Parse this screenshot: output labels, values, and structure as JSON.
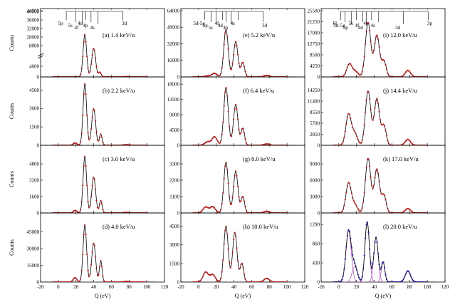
{
  "figure": {
    "xlabel": "Q (eV)",
    "ylabel": "Counts"
  },
  "chart_data": [
    {
      "id": "a",
      "type": "line",
      "label": "(a) 1.4 keV/u",
      "xlim": [
        -20,
        120
      ],
      "ylim": [
        0,
        44000
      ],
      "yticks": [
        "0",
        "4000",
        "8000",
        "28000",
        "32000",
        "36000",
        "40000",
        "44000"
      ],
      "ybreak": true,
      "xlabel": "",
      "ylabel": "Counts",
      "level_markers": [
        {
          "name": "5p",
          "q": 9
        },
        {
          "name": "5s",
          "q": 20
        },
        {
          "name": "4f",
          "q": 27
        },
        {
          "name": "4d",
          "q": 31
        },
        {
          "name": "4p",
          "q": 37
        },
        {
          "name": "4s",
          "q": 45
        },
        {
          "name": "3d",
          "q": 73
        }
      ],
      "series": [
        {
          "peaks": [
            [
              19,
              2,
              5
            ],
            [
              30,
              2,
              28000
            ],
            [
              40,
              2.2,
              19000
            ],
            [
              47,
              1.5,
              3000
            ],
            [
              77,
              3,
              200
            ]
          ]
        }
      ]
    },
    {
      "id": "e",
      "type": "line",
      "label": "(e) 5.2 keV/u",
      "xlim": [
        -20,
        120
      ],
      "ylim": [
        0,
        64000
      ],
      "yticks": [
        "0",
        "16000",
        "32000",
        "48000",
        "64000"
      ],
      "xlabel": "",
      "ylabel": "",
      "level_markers": [
        {
          "name": "5d-5g",
          "q": 7
        },
        {
          "name": "5p",
          "q": 14
        },
        {
          "name": "5s",
          "q": 20
        },
        {
          "name": "4f",
          "q": 27
        },
        {
          "name": "4d",
          "q": 31
        },
        {
          "name": "4p",
          "q": 37
        },
        {
          "name": "4s",
          "q": 45
        },
        {
          "name": "3d",
          "q": 73
        }
      ],
      "series": [
        {
          "peaks": [
            [
              10,
              3,
              1000
            ],
            [
              18,
              3,
              3500
            ],
            [
              31,
              2.5,
              46000
            ],
            [
              42,
              2.5,
              34000
            ],
            [
              50,
              2,
              14000
            ],
            [
              77,
              3,
              1500
            ]
          ]
        }
      ]
    },
    {
      "id": "i",
      "type": "line",
      "label": "(i) 12.0 keV/u",
      "xlim": [
        -20,
        120
      ],
      "ylim": [
        0,
        25500
      ],
      "yticks": [
        "0",
        "4250",
        "8500",
        "12750",
        "17000",
        "21250",
        "25500"
      ],
      "xlabel": "",
      "ylabel": "",
      "level_markers": [
        {
          "name": "6l",
          "q": 2
        },
        {
          "name": "5d-5g",
          "q": 7
        },
        {
          "name": "5p",
          "q": 14
        },
        {
          "name": "5s",
          "q": 20
        },
        {
          "name": "4f",
          "q": 27
        },
        {
          "name": "4d",
          "q": 31
        },
        {
          "name": "4p",
          "q": 37
        },
        {
          "name": "4s",
          "q": 45
        },
        {
          "name": "3d",
          "q": 73
        },
        {
          "name": "3p",
          "q": 101
        }
      ],
      "series": [
        {
          "peaks": [
            [
              12,
              3,
              5000
            ],
            [
              19,
              3,
              2000
            ],
            [
              33,
              3,
              21000
            ],
            [
              43,
              3,
              16000
            ],
            [
              51,
              2.5,
              6000
            ],
            [
              78,
              3,
              2500
            ]
          ]
        }
      ]
    },
    {
      "id": "b",
      "type": "line",
      "label": "(b) 2.2 keV/u",
      "xlim": [
        -20,
        120
      ],
      "ylim": [
        0,
        5400
      ],
      "yticks": [
        "0",
        "1500",
        "3000",
        "4500"
      ],
      "xlabel": "",
      "ylabel": "Counts",
      "series": [
        {
          "peaks": [
            [
              19,
              2,
              200
            ],
            [
              30,
              2,
              5000
            ],
            [
              40,
              2.2,
              3000
            ],
            [
              48,
              1.5,
              900
            ],
            [
              77,
              3,
              50
            ]
          ]
        }
      ]
    },
    {
      "id": "f",
      "type": "line",
      "label": "(f) 6.4 keV/u",
      "xlim": [
        -20,
        120
      ],
      "ylim": [
        0,
        19500
      ],
      "yticks": [
        "0",
        "4500",
        "9000",
        "13500",
        "18000"
      ],
      "xlabel": "",
      "ylabel": "",
      "series": [
        {
          "peaks": [
            [
              10,
              3,
              1000
            ],
            [
              18,
              3,
              2500
            ],
            [
              31,
              2.5,
              17000
            ],
            [
              42,
              2.5,
              12000
            ],
            [
              50,
              2,
              5000
            ],
            [
              77,
              3,
              400
            ]
          ]
        }
      ]
    },
    {
      "id": "j",
      "type": "line",
      "label": "(j) 14.4 keV/u",
      "xlim": [
        -20,
        120
      ],
      "ylim": [
        0,
        17100
      ],
      "yticks": [
        "0",
        "2850",
        "5700",
        "8550",
        "11400",
        "14250"
      ],
      "xlabel": "",
      "ylabel": "",
      "series": [
        {
          "peaks": [
            [
              11,
              3,
              8000
            ],
            [
              18,
              3,
              3000
            ],
            [
              33,
              3,
              14000
            ],
            [
              43,
              3,
              12000
            ],
            [
              51,
              2.5,
              5000
            ],
            [
              78,
              3,
              1500
            ]
          ]
        }
      ]
    },
    {
      "id": "c",
      "type": "line",
      "label": "(c) 3.0 keV/u",
      "xlim": [
        -20,
        120
      ],
      "ylim": [
        0,
        6400
      ],
      "yticks": [
        "0",
        "1600",
        "3200",
        "4800"
      ],
      "xlabel": "",
      "ylabel": "Counts",
      "series": [
        {
          "peaks": [
            [
              19,
              2,
              250
            ],
            [
              30,
              2,
              5500
            ],
            [
              40,
              2.2,
              3500
            ],
            [
              48,
              1.5,
              1200
            ],
            [
              77,
              3,
              60
            ]
          ]
        }
      ]
    },
    {
      "id": "g",
      "type": "line",
      "label": "(g) 8.0 keV/u",
      "xlim": [
        -20,
        120
      ],
      "ylim": [
        0,
        4400
      ],
      "yticks": [
        "0",
        "1100",
        "2200",
        "3300"
      ],
      "xlabel": "",
      "ylabel": "",
      "series": [
        {
          "peaks": [
            [
              8,
              3,
              400
            ],
            [
              16,
              3,
              420
            ],
            [
              31,
              2.5,
              3400
            ],
            [
              42,
              2.5,
              2800
            ],
            [
              50,
              2,
              1100
            ],
            [
              77,
              3,
              120
            ]
          ]
        }
      ]
    },
    {
      "id": "k",
      "type": "line",
      "label": "(k) 17.0 keV/u",
      "xlim": [
        -20,
        120
      ],
      "ylim": [
        0,
        12000
      ],
      "yticks": [
        "0",
        "3000",
        "6000",
        "9000"
      ],
      "xlabel": "",
      "ylabel": "",
      "series": [
        {
          "peaks": [
            [
              11,
              3,
              5500
            ],
            [
              18,
              3,
              1500
            ],
            [
              33,
              3,
              10000
            ],
            [
              43,
              3,
              8000
            ],
            [
              51,
              2.5,
              3200
            ],
            [
              78,
              3,
              800
            ]
          ]
        }
      ]
    },
    {
      "id": "d",
      "type": "line",
      "label": "(d) 4.0 keV/u",
      "xlim": [
        -20,
        120
      ],
      "ylim": [
        0,
        60000
      ],
      "yticks": [
        "0",
        "15000",
        "30000",
        "45000"
      ],
      "xlabel": "Q (eV)",
      "ylabel": "Counts",
      "show_xticks": true,
      "series": [
        {
          "peaks": [
            [
              19,
              2,
              4000
            ],
            [
              30,
              2,
              51000
            ],
            [
              40,
              2.2,
              35000
            ],
            [
              48,
              1.5,
              19000
            ],
            [
              77,
              3,
              600
            ]
          ]
        }
      ]
    },
    {
      "id": "h",
      "type": "line",
      "label": "(h) 10.0 keV/u",
      "xlim": [
        -20,
        120
      ],
      "ylim": [
        0,
        5400
      ],
      "yticks": [
        "0",
        "1500",
        "3000",
        "4500"
      ],
      "xlabel": "Q (eV)",
      "ylabel": "",
      "show_xticks": true,
      "series": [
        {
          "peaks": [
            [
              8,
              3,
              800
            ],
            [
              16,
              3,
              600
            ],
            [
              31,
              2.5,
              4500
            ],
            [
              41,
              2.5,
              4000
            ],
            [
              49,
              2,
              1500
            ],
            [
              77,
              3,
              300
            ]
          ]
        }
      ]
    },
    {
      "id": "l",
      "type": "line",
      "label": "(l) 20.0 keV/u",
      "xlim": [
        -20,
        120
      ],
      "ylim": [
        0,
        1500
      ],
      "yticks": [
        "0",
        "430",
        "860",
        "1290"
      ],
      "xlabel": "Q (eV)",
      "ylabel": "",
      "show_xticks": true,
      "fit_components": true,
      "series": [
        {
          "peaks": [
            [
              11,
              3,
              1150
            ],
            [
              18,
              3,
              350
            ],
            [
              32,
              2.5,
              1350
            ],
            [
              42,
              2.5,
              1000
            ],
            [
              50,
              2,
              450
            ],
            [
              78,
              3,
              250
            ]
          ]
        }
      ]
    }
  ],
  "xticks": [
    "-20",
    "0",
    "20",
    "40",
    "60",
    "80",
    "100",
    "120"
  ],
  "colors": {
    "data": "#b22222",
    "fit": "#000000",
    "data_l": "#1f1f8f",
    "components": "#b15bb8"
  }
}
